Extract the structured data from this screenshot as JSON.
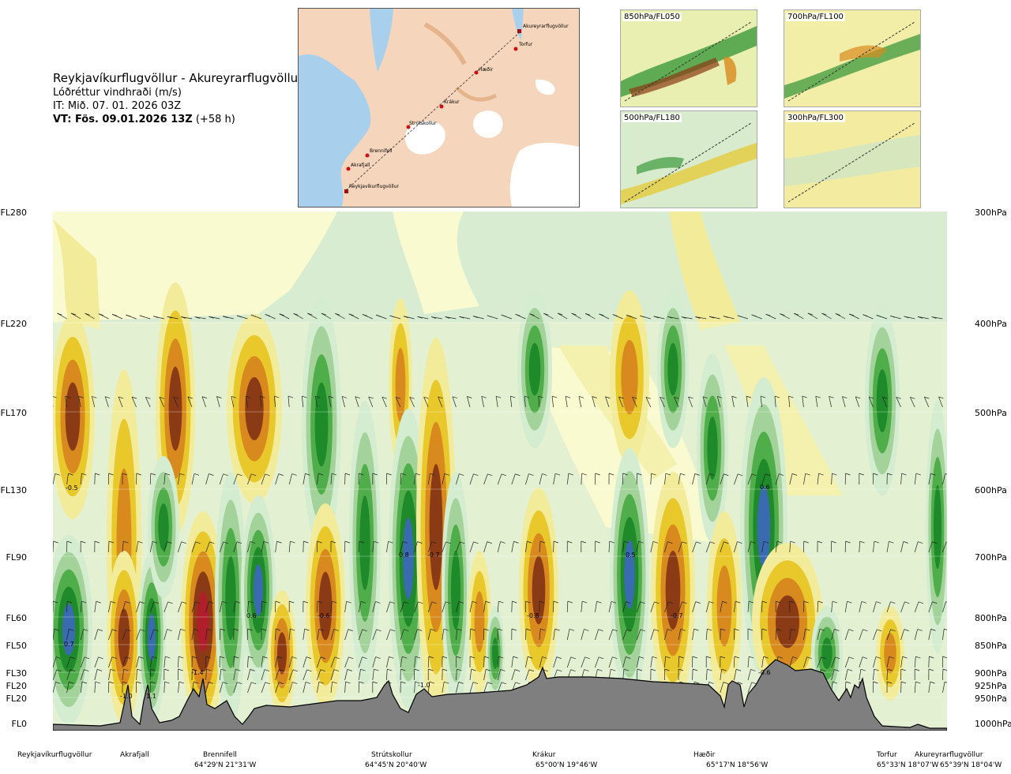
{
  "header": {
    "title": "Reykjavíkurflugvöllur - Akureyrarflugvöllur",
    "subtitle": "Lóðréttur vindhraði (m/s)",
    "it": "IT: Mið. 07. 01. 2026 03Z",
    "vt_bold": "VT: Fös. 09.01.2026 13Z",
    "vt_offset": " (+58 h)"
  },
  "map": {
    "points": [
      "Akureyrarflugvöllur",
      "Torfur",
      "Hæðir",
      "Krákur",
      "Strútskollur",
      "Brennifell",
      "Akrafjall",
      "Reykjavíkurflugvöllur"
    ]
  },
  "thumbs": [
    "850hPa/FL050",
    "700hPa/FL100",
    "500hPa/FL180",
    "300hPa/FL300"
  ],
  "chart_data": {
    "type": "heatmap",
    "title": "Reykjavíkurflugvöllur - Akureyrarflugvöllur",
    "variable": "Lóðréttur vindhraði (m/s)",
    "y_levels": [
      {
        "fl": "FL280",
        "hpa": "300hPa"
      },
      {
        "fl": "FL220",
        "hpa": "400hPa"
      },
      {
        "fl": "FL170",
        "hpa": "500hPa"
      },
      {
        "fl": "FL130",
        "hpa": "600hPa"
      },
      {
        "fl": "FL90",
        "hpa": "700hPa"
      },
      {
        "fl": "FL60",
        "hpa": "800hPa"
      },
      {
        "fl": "FL50",
        "hpa": "850hPa"
      },
      {
        "fl": "FL30",
        "hpa": "900hPa"
      },
      {
        "fl": "FL20",
        "hpa": "925hPa"
      },
      {
        "fl": "FL20",
        "hpa": "950hPa"
      },
      {
        "fl": "FL0",
        "hpa": "1000hPa"
      }
    ],
    "sites": [
      {
        "name": "Reykjavíkurflugvöllur",
        "coord": ""
      },
      {
        "name": "Akrafjall",
        "coord": ""
      },
      {
        "name": "Brennifell",
        "coord": "64°29'N 21°31'W"
      },
      {
        "name": "Strútskollur",
        "coord": "64°45'N 20°40'W"
      },
      {
        "name": "Krákur",
        "coord": "65°00'N 19°46'W"
      },
      {
        "name": "Hæðir",
        "coord": "65°17'N 18°56'W"
      },
      {
        "name": "Torfur",
        "coord": "65°33'N 18°07'W"
      },
      {
        "name": "Akureyrarflugvöllur",
        "coord": "65°39'N 18°04'W"
      }
    ],
    "annotated_values": [
      "-0.5",
      "0.7",
      "-1.0",
      "1.1",
      "-1.4",
      "0.6",
      "-0.6",
      "0.8",
      "-0.7",
      "-1.0",
      "-0.8",
      "0.5",
      "-0.7",
      "0.6",
      "-0.6"
    ],
    "palette": {
      "strong_up": "#3a6ab0",
      "up3": "#1e8a2a",
      "up2": "#4fad4a",
      "up1": "#a3d39a",
      "weak": "#d4ecd0",
      "neutral": "#fafad0",
      "down1": "#f2ec9a",
      "down2": "#e8c82a",
      "down3": "#d88a1e",
      "strong_down": "#8a3a14",
      "extreme_down": "#b01e2a",
      "terrain": "#7f7f7f"
    }
  }
}
